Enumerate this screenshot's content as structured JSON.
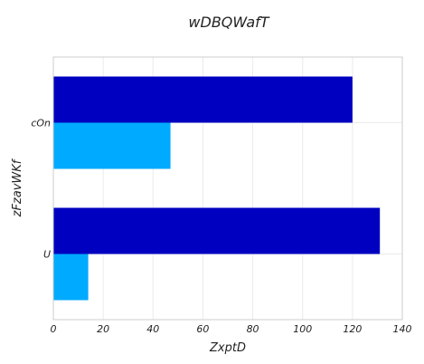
{
  "chart_data": {
    "type": "bar",
    "orientation": "horizontal",
    "title": "wDBQWafT",
    "xlabel": "ZxptD",
    "ylabel": "zFzavWKf",
    "categories": [
      "U",
      "cOn"
    ],
    "series": [
      {
        "values": [
          131,
          120
        ],
        "color": "#0000c0"
      },
      {
        "values": [
          14,
          47
        ],
        "color": "#00aaff"
      }
    ],
    "xlim": [
      0,
      140
    ],
    "xticks": [
      0,
      20,
      40,
      60,
      80,
      100,
      120,
      140
    ],
    "grid": true
  }
}
